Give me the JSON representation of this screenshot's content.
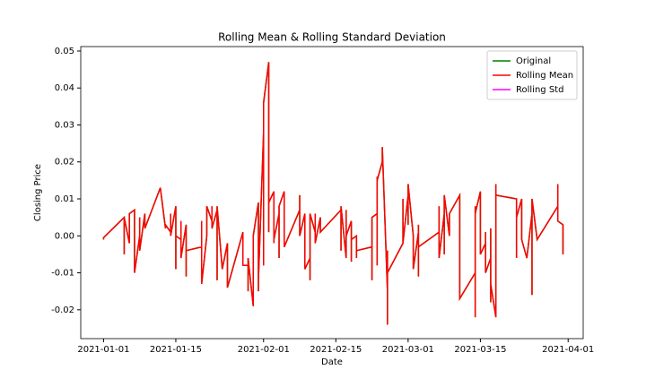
{
  "chart_data": {
    "type": "line",
    "title": "Rolling Mean & Rolling Standard Deviation",
    "x_label": "Date",
    "y_label": "Closing Price",
    "x": [
      "2021-01-01",
      "2021-01-01",
      "2021-01-05",
      "2021-01-05",
      "2021-01-05",
      "2021-01-06",
      "2021-01-06",
      "2021-01-07",
      "2021-01-07",
      "2021-01-08",
      "2021-01-08",
      "2021-01-08",
      "2021-01-09",
      "2021-01-09",
      "2021-01-12",
      "2021-01-13",
      "2021-01-13",
      "2021-01-14",
      "2021-01-14",
      "2021-01-14",
      "2021-01-15",
      "2021-01-15",
      "2021-01-15",
      "2021-01-16",
      "2021-01-16",
      "2021-01-16",
      "2021-01-17",
      "2021-01-17",
      "2021-01-17",
      "2021-01-20",
      "2021-01-20",
      "2021-01-20",
      "2021-01-21",
      "2021-01-21",
      "2021-01-22",
      "2021-01-22",
      "2021-01-22",
      "2021-01-23",
      "2021-01-23",
      "2021-01-23",
      "2021-01-24",
      "2021-01-25",
      "2021-01-25",
      "2021-01-28",
      "2021-01-28",
      "2021-01-29",
      "2021-01-29",
      "2021-01-29",
      "2021-01-30",
      "2021-01-30",
      "2021-01-31",
      "2021-01-31",
      "2021-01-31",
      "2021-02-01",
      "2021-02-01",
      "2021-02-01",
      "2021-02-01",
      "2021-02-01",
      "2021-02-02",
      "2021-02-02",
      "2021-02-02",
      "2021-02-03",
      "2021-02-03",
      "2021-02-03",
      "2021-02-04",
      "2021-02-04",
      "2021-02-04",
      "2021-02-05",
      "2021-02-05",
      "2021-02-08",
      "2021-02-08",
      "2021-02-08",
      "2021-02-09",
      "2021-02-09",
      "2021-02-10",
      "2021-02-10",
      "2021-02-10",
      "2021-02-10",
      "2021-02-11",
      "2021-02-11",
      "2021-02-11",
      "2021-02-12",
      "2021-02-12",
      "2021-02-16",
      "2021-02-16",
      "2021-02-16",
      "2021-02-17",
      "2021-02-17",
      "2021-02-17",
      "2021-02-17",
      "2021-02-18",
      "2021-02-18",
      "2021-02-18",
      "2021-02-19",
      "2021-02-19",
      "2021-02-19",
      "2021-02-22",
      "2021-02-22",
      "2021-02-22",
      "2021-02-22",
      "2021-02-23",
      "2021-02-23",
      "2021-02-23",
      "2021-02-23",
      "2021-02-24",
      "2021-02-24",
      "2021-02-25",
      "2021-02-25",
      "2021-02-25",
      "2021-02-25",
      "2021-02-28",
      "2021-02-28",
      "2021-02-28",
      "2021-03-01",
      "2021-03-01",
      "2021-03-01",
      "2021-03-02",
      "2021-03-02",
      "2021-03-03",
      "2021-03-03",
      "2021-03-03",
      "2021-03-03",
      "2021-03-07",
      "2021-03-07",
      "2021-03-07",
      "2021-03-08",
      "2021-03-08",
      "2021-03-08",
      "2021-03-09",
      "2021-03-09",
      "2021-03-11",
      "2021-03-11",
      "2021-03-14",
      "2021-03-14",
      "2021-03-14",
      "2021-03-14",
      "2021-03-15",
      "2021-03-15",
      "2021-03-16",
      "2021-03-16",
      "2021-03-16",
      "2021-03-17",
      "2021-03-17",
      "2021-03-17",
      "2021-03-17",
      "2021-03-18",
      "2021-03-18",
      "2021-03-18",
      "2021-03-22",
      "2021-03-22",
      "2021-03-22",
      "2021-03-23",
      "2021-03-23",
      "2021-03-23",
      "2021-03-24",
      "2021-03-24",
      "2021-03-25",
      "2021-03-25",
      "2021-03-25",
      "2021-03-26",
      "2021-03-30",
      "2021-03-30",
      "2021-03-30",
      "2021-03-31",
      "2021-03-31"
    ],
    "series": [
      {
        "name": "Original",
        "color": "#008000",
        "values": [
          -0.001,
          -0.0005,
          0.005,
          -0.005,
          0.005,
          -0.002,
          0.006,
          0.007,
          -0.01,
          0.0,
          0.005,
          -0.004,
          0.006,
          0.002,
          0.013,
          0.002,
          0.003,
          0.001,
          0.006,
          0.0,
          0.008,
          -0.009,
          0.0,
          -0.001,
          0.004,
          -0.006,
          0.003,
          -0.011,
          -0.004,
          -0.003,
          0.004,
          -0.013,
          0.0,
          0.008,
          0.004,
          0.008,
          0.002,
          0.007,
          -0.012,
          0.008,
          -0.009,
          -0.002,
          -0.014,
          0.001,
          -0.008,
          -0.008,
          -0.015,
          -0.006,
          -0.019,
          0.0,
          0.009,
          -0.015,
          -0.012,
          0.028,
          -0.008,
          0.029,
          0.024,
          0.036,
          0.047,
          0.001,
          0.009,
          0.012,
          -0.002,
          -0.001,
          0.006,
          -0.006,
          0.008,
          0.012,
          -0.003,
          0.007,
          0.011,
          0.0,
          0.006,
          -0.009,
          -0.006,
          0.004,
          -0.012,
          0.006,
          0.001,
          0.006,
          -0.002,
          0.005,
          0.001,
          0.007,
          -0.004,
          0.008,
          -0.006,
          0.007,
          -0.002,
          0.0,
          0.004,
          -0.007,
          -0.001,
          0.0,
          -0.006,
          -0.004,
          -0.003,
          0.0,
          -0.012,
          0.005,
          0.006,
          -0.008,
          0.016,
          0.015,
          0.02,
          0.024,
          -0.015,
          -0.024,
          -0.004,
          -0.01,
          -0.002,
          0.01,
          -0.002,
          0.011,
          0.003,
          0.014,
          0.0,
          -0.009,
          0.001,
          0.003,
          -0.011,
          -0.003,
          0.001,
          0.008,
          -0.006,
          0.006,
          -0.005,
          0.011,
          0.0,
          0.006,
          0.011,
          -0.017,
          -0.01,
          -0.022,
          0.008,
          0.006,
          0.012,
          -0.005,
          -0.002,
          0.001,
          -0.01,
          -0.006,
          -0.018,
          0.002,
          -0.013,
          -0.022,
          0.014,
          0.011,
          0.01,
          -0.006,
          0.005,
          0.01,
          0.0,
          -0.001,
          -0.006,
          -0.006,
          0.006,
          -0.016,
          0.01,
          -0.001,
          0.008,
          0.014,
          0.004,
          0.003,
          -0.005
        ]
      },
      {
        "name": "Rolling Mean",
        "color": "#ff0000",
        "values": [
          -0.001,
          -0.0005,
          0.005,
          -0.005,
          0.005,
          -0.002,
          0.006,
          0.007,
          -0.01,
          0.0,
          0.005,
          -0.004,
          0.006,
          0.002,
          0.013,
          0.002,
          0.003,
          0.001,
          0.006,
          0.0,
          0.008,
          -0.009,
          0.0,
          -0.001,
          0.004,
          -0.006,
          0.003,
          -0.011,
          -0.004,
          -0.003,
          0.004,
          -0.013,
          0.0,
          0.008,
          0.004,
          0.008,
          0.002,
          0.007,
          -0.012,
          0.008,
          -0.009,
          -0.002,
          -0.014,
          0.001,
          -0.008,
          -0.008,
          -0.015,
          -0.006,
          -0.019,
          0.0,
          0.009,
          -0.015,
          -0.012,
          0.028,
          -0.008,
          0.029,
          0.024,
          0.036,
          0.047,
          0.001,
          0.009,
          0.012,
          -0.002,
          -0.001,
          0.006,
          -0.006,
          0.008,
          0.012,
          -0.003,
          0.007,
          0.011,
          0.0,
          0.006,
          -0.009,
          -0.006,
          0.004,
          -0.012,
          0.006,
          0.001,
          0.006,
          -0.002,
          0.005,
          0.001,
          0.007,
          -0.004,
          0.008,
          -0.006,
          0.007,
          -0.002,
          0.0,
          0.004,
          -0.007,
          -0.001,
          0.0,
          -0.006,
          -0.004,
          -0.003,
          0.0,
          -0.012,
          0.005,
          0.006,
          -0.008,
          0.016,
          0.015,
          0.02,
          0.024,
          -0.015,
          -0.024,
          -0.004,
          -0.01,
          -0.002,
          0.01,
          -0.002,
          0.011,
          0.003,
          0.014,
          0.0,
          -0.009,
          0.001,
          0.003,
          -0.011,
          -0.003,
          0.001,
          0.008,
          -0.006,
          0.006,
          -0.005,
          0.011,
          0.0,
          0.006,
          0.011,
          -0.017,
          -0.01,
          -0.022,
          0.008,
          0.006,
          0.012,
          -0.005,
          -0.002,
          0.001,
          -0.01,
          -0.006,
          -0.018,
          0.002,
          -0.013,
          -0.022,
          0.014,
          0.011,
          0.01,
          -0.006,
          0.005,
          0.01,
          0.0,
          -0.001,
          -0.006,
          -0.006,
          0.006,
          -0.016,
          0.01,
          -0.001,
          0.008,
          0.014,
          0.004,
          0.003,
          -0.005
        ]
      },
      {
        "name": "Rolling Std",
        "color": "#ff00ff",
        "values": [
          null,
          null,
          null,
          null,
          null,
          null,
          null,
          null,
          null,
          null,
          null,
          null,
          null,
          null,
          null,
          null,
          null,
          null,
          null,
          null,
          null,
          null,
          null,
          null,
          null,
          null,
          null,
          null,
          null,
          null,
          null,
          null,
          null,
          null,
          null,
          null,
          null,
          null,
          null,
          null,
          null,
          null,
          null,
          null,
          null,
          null,
          null,
          null,
          null,
          null,
          null,
          null,
          null,
          null,
          null,
          null,
          null,
          null,
          null,
          null,
          null,
          null,
          null,
          null,
          null,
          null,
          null,
          null,
          null,
          null,
          null,
          null,
          null,
          null,
          null,
          null,
          null,
          null,
          null,
          null,
          null,
          null,
          null,
          null,
          null,
          null,
          null,
          null,
          null,
          null,
          null,
          null,
          null,
          null,
          null,
          null,
          null,
          null,
          null,
          null,
          null,
          null,
          null,
          null,
          null,
          null,
          null,
          null,
          null,
          null,
          null,
          null,
          null,
          null,
          null,
          null,
          null,
          null,
          null,
          null,
          null,
          null,
          null,
          null,
          null,
          null,
          null,
          null,
          null,
          null,
          null,
          null,
          null,
          null,
          null,
          null,
          null,
          null,
          null,
          null,
          null,
          null,
          null,
          null,
          null,
          null,
          null,
          null,
          null,
          null,
          null,
          null,
          null,
          null,
          null,
          null,
          null,
          null,
          null,
          null,
          null,
          null,
          null,
          null,
          null
        ]
      }
    ],
    "xlim": [
      "2020-12-27T14:00",
      "2021-04-03T22:00"
    ],
    "xticks": [
      "2021-01-01",
      "2021-01-15",
      "2021-02-01",
      "2021-02-15",
      "2021-03-01",
      "2021-03-15",
      "2021-04-01"
    ],
    "ylim": [
      -0.0278,
      0.0512
    ],
    "yticks": [
      -0.02,
      -0.01,
      {
        "value": 0,
        "label": "0.00"
      },
      0.01,
      0.02,
      0.03,
      0.04,
      0.05
    ],
    "legend": "upper right"
  }
}
